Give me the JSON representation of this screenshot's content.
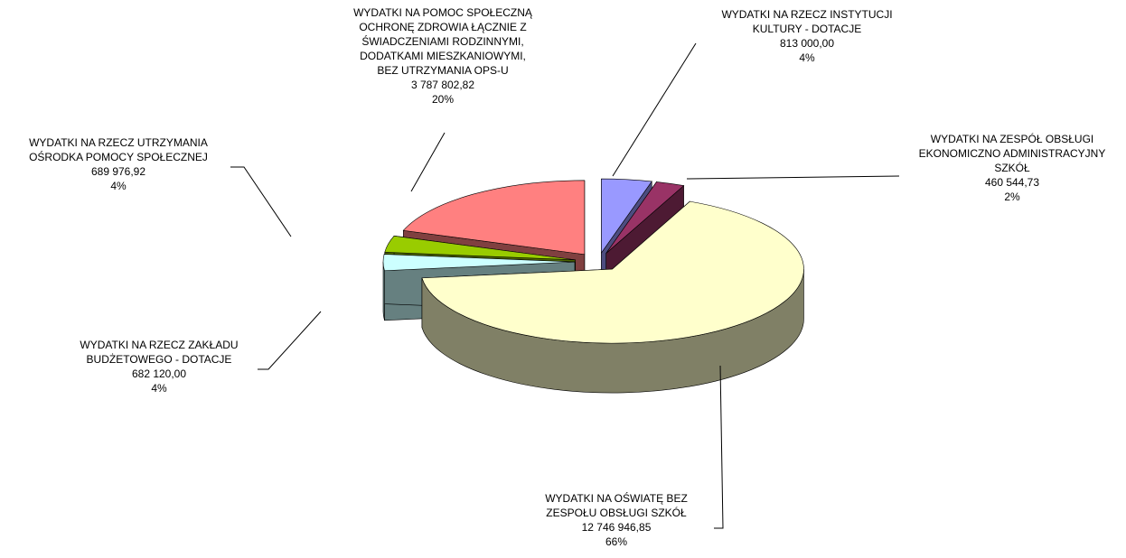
{
  "chart_data": {
    "type": "pie",
    "categories": [
      [
        "WYDATKI NA RZECZ INSTYTUCJI",
        "KULTURY - DOTACJE"
      ],
      [
        "WYDATKI NA ZESPÓŁ OBSŁUGI",
        "EKONOMICZNO ADMINISTRACYJNY",
        "SZKÓŁ"
      ],
      [
        "WYDATKI NA OŚWIATĘ BEZ",
        "ZESPOŁU OBSŁUGI SZKÓŁ"
      ],
      [
        "WYDATKI NA RZECZ ZAKŁADU",
        "BUDŻETOWEGO - DOTACJE"
      ],
      [
        "WYDATKI NA RZECZ UTRZYMANIA",
        "OŚRODKA POMOCY SPOŁECZNEJ"
      ],
      [
        "WYDATKI NA POMOC SPOŁECZNĄ",
        "OCHRONĘ ZDROWIA ŁĄCZNIE Z",
        "ŚWIADCZENIAMI RODZINNYMI,",
        "DODATKAMI MIESZKANIOWYMI,",
        "BEZ UTRZYMANIA OPS-U"
      ]
    ],
    "values": [
      813000.0,
      460544.73,
      12746946.85,
      682120.0,
      689976.92,
      3787802.82
    ],
    "value_labels": [
      "813 000,00",
      "460 544,73",
      "12 746 946,85",
      "682 120,00",
      "689 976,92",
      "3 787 802,82"
    ],
    "percents": [
      4,
      2,
      66,
      4,
      4,
      20
    ],
    "percent_labels": [
      "4%",
      "2%",
      "66%",
      "4%",
      "4%",
      "20%"
    ],
    "colors": [
      "#9999ff",
      "#993366",
      "#ffffcc",
      "#ccffff",
      "#99cc00",
      "#ff8080"
    ]
  }
}
